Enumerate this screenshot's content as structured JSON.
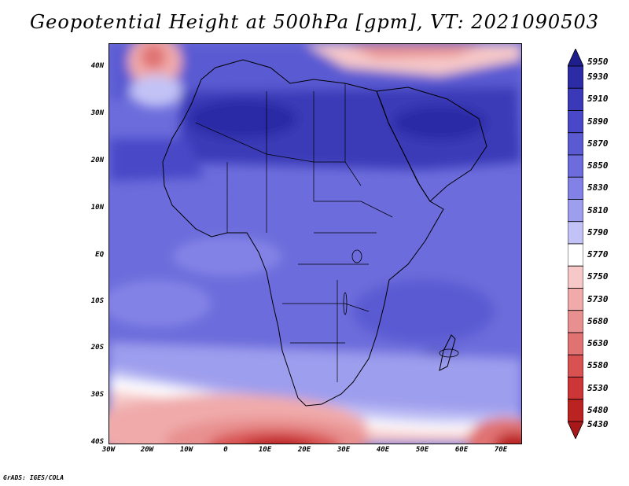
{
  "title": "Geopotential Height at 500hPa [gpm], VT: 2021090503",
  "credit": "GrADS: IGES/COLA",
  "lat_ticks": [
    "40N",
    "30N",
    "20N",
    "10N",
    "EQ",
    "10S",
    "20S",
    "30S",
    "40S"
  ],
  "lon_ticks": [
    "30W",
    "20W",
    "10W",
    "0",
    "10E",
    "20E",
    "30E",
    "40E",
    "50E",
    "60E",
    "70E"
  ],
  "colorbar": {
    "levels": [
      "5950",
      "5930",
      "5910",
      "5890",
      "5870",
      "5850",
      "5830",
      "5810",
      "5790",
      "5770",
      "5750",
      "5730",
      "5680",
      "5630",
      "5580",
      "5530",
      "5480",
      "5430"
    ],
    "colors": [
      "#1e1e8c",
      "#2c2ca6",
      "#3a3ab8",
      "#4848c8",
      "#5a5ad2",
      "#6c6cdc",
      "#8282e6",
      "#9e9eee",
      "#c2c2f6",
      "#ffffff",
      "#f6c8c8",
      "#f0aaaa",
      "#e89090",
      "#e07272",
      "#d85252",
      "#cc3636",
      "#bb2222",
      "#a81818"
    ]
  }
}
